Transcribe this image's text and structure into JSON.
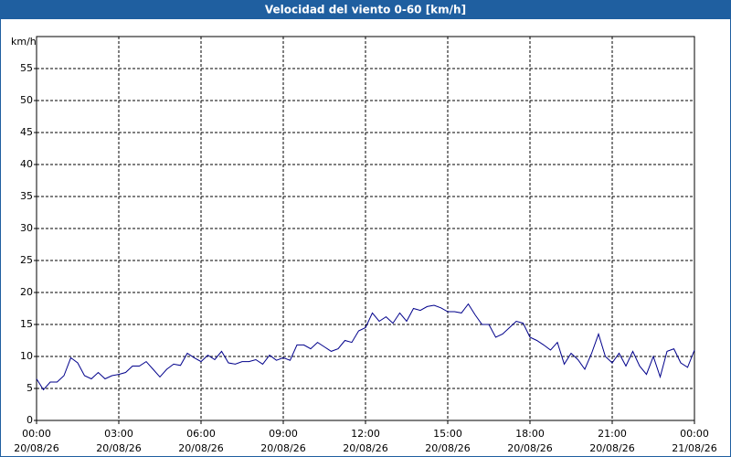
{
  "chart_data": {
    "type": "line",
    "title": "Velocidad del viento 0-60 [km/h]",
    "y_label": "km/h",
    "x": [
      0,
      0.25,
      0.5,
      0.75,
      1,
      1.25,
      1.5,
      1.75,
      2,
      2.25,
      2.5,
      2.75,
      3,
      3.25,
      3.5,
      3.75,
      4,
      4.25,
      4.5,
      4.75,
      5,
      5.25,
      5.5,
      5.75,
      6,
      6.25,
      6.5,
      6.75,
      7,
      7.25,
      7.5,
      7.75,
      8,
      8.25,
      8.5,
      8.75,
      9,
      9.25,
      9.5,
      9.75,
      10,
      10.25,
      10.5,
      10.75,
      11,
      11.25,
      11.5,
      11.75,
      12,
      12.25,
      12.5,
      12.75,
      13,
      13.25,
      13.5,
      13.75,
      14,
      14.25,
      14.5,
      14.75,
      15,
      15.25,
      15.5,
      15.75,
      16,
      16.25,
      16.5,
      16.75,
      17,
      17.25,
      17.5,
      17.75,
      18,
      18.25,
      18.5,
      18.75,
      19,
      19.25,
      19.5,
      19.75,
      20,
      20.25,
      20.5,
      20.75,
      21,
      21.25,
      21.5,
      21.75,
      22,
      22.25,
      22.5,
      22.75,
      23,
      23.25,
      23.5,
      23.75,
      24
    ],
    "values": [
      6.5,
      4.8,
      6,
      6,
      7,
      9.8,
      9,
      7,
      6.5,
      7.5,
      6.5,
      7,
      7.2,
      7.5,
      8.5,
      8.5,
      9.2,
      8,
      6.8,
      8,
      8.8,
      8.6,
      10.5,
      9.8,
      9.2,
      10.2,
      9.5,
      10.8,
      9,
      8.8,
      9.2,
      9.2,
      9.5,
      8.8,
      10.2,
      9.4,
      9.8,
      9.4,
      11.8,
      11.8,
      11.2,
      12.2,
      11.5,
      10.8,
      11.2,
      12.5,
      12.2,
      14,
      14.5,
      16.8,
      15.5,
      16.2,
      15.2,
      16.8,
      15.5,
      17.5,
      17.2,
      17.8,
      18,
      17.6,
      17,
      17,
      16.8,
      18.2,
      16.5,
      15,
      15,
      13,
      13.5,
      14.5,
      15.5,
      15.2,
      13,
      12.5,
      11.8,
      11,
      12.2,
      8.8,
      10.5,
      9.5,
      8,
      10.5,
      13.5,
      10,
      9,
      10.5,
      8.5,
      10.8,
      8.5,
      7.2,
      10,
      6.8,
      10.8,
      11.2,
      9,
      8.3,
      11
    ],
    "color": "#00008b",
    "xlim": [
      0,
      24
    ],
    "xticks": [
      {
        "value": 0,
        "label": "00:00",
        "date": "20/08/26"
      },
      {
        "value": 3,
        "label": "03:00",
        "date": "20/08/26"
      },
      {
        "value": 6,
        "label": "06:00",
        "date": "20/08/26"
      },
      {
        "value": 9,
        "label": "09:00",
        "date": "20/08/26"
      },
      {
        "value": 12,
        "label": "12:00",
        "date": "20/08/26"
      },
      {
        "value": 15,
        "label": "15:00",
        "date": "20/08/26"
      },
      {
        "value": 18,
        "label": "18:00",
        "date": "20/08/26"
      },
      {
        "value": 21,
        "label": "21:00",
        "date": "20/08/26"
      },
      {
        "value": 24,
        "label": "00:00",
        "date": "21/08/26"
      }
    ],
    "ylim": [
      0,
      60
    ],
    "yticks": [
      0,
      5,
      10,
      15,
      20,
      25,
      30,
      35,
      40,
      45,
      50,
      55
    ],
    "grid": true
  }
}
